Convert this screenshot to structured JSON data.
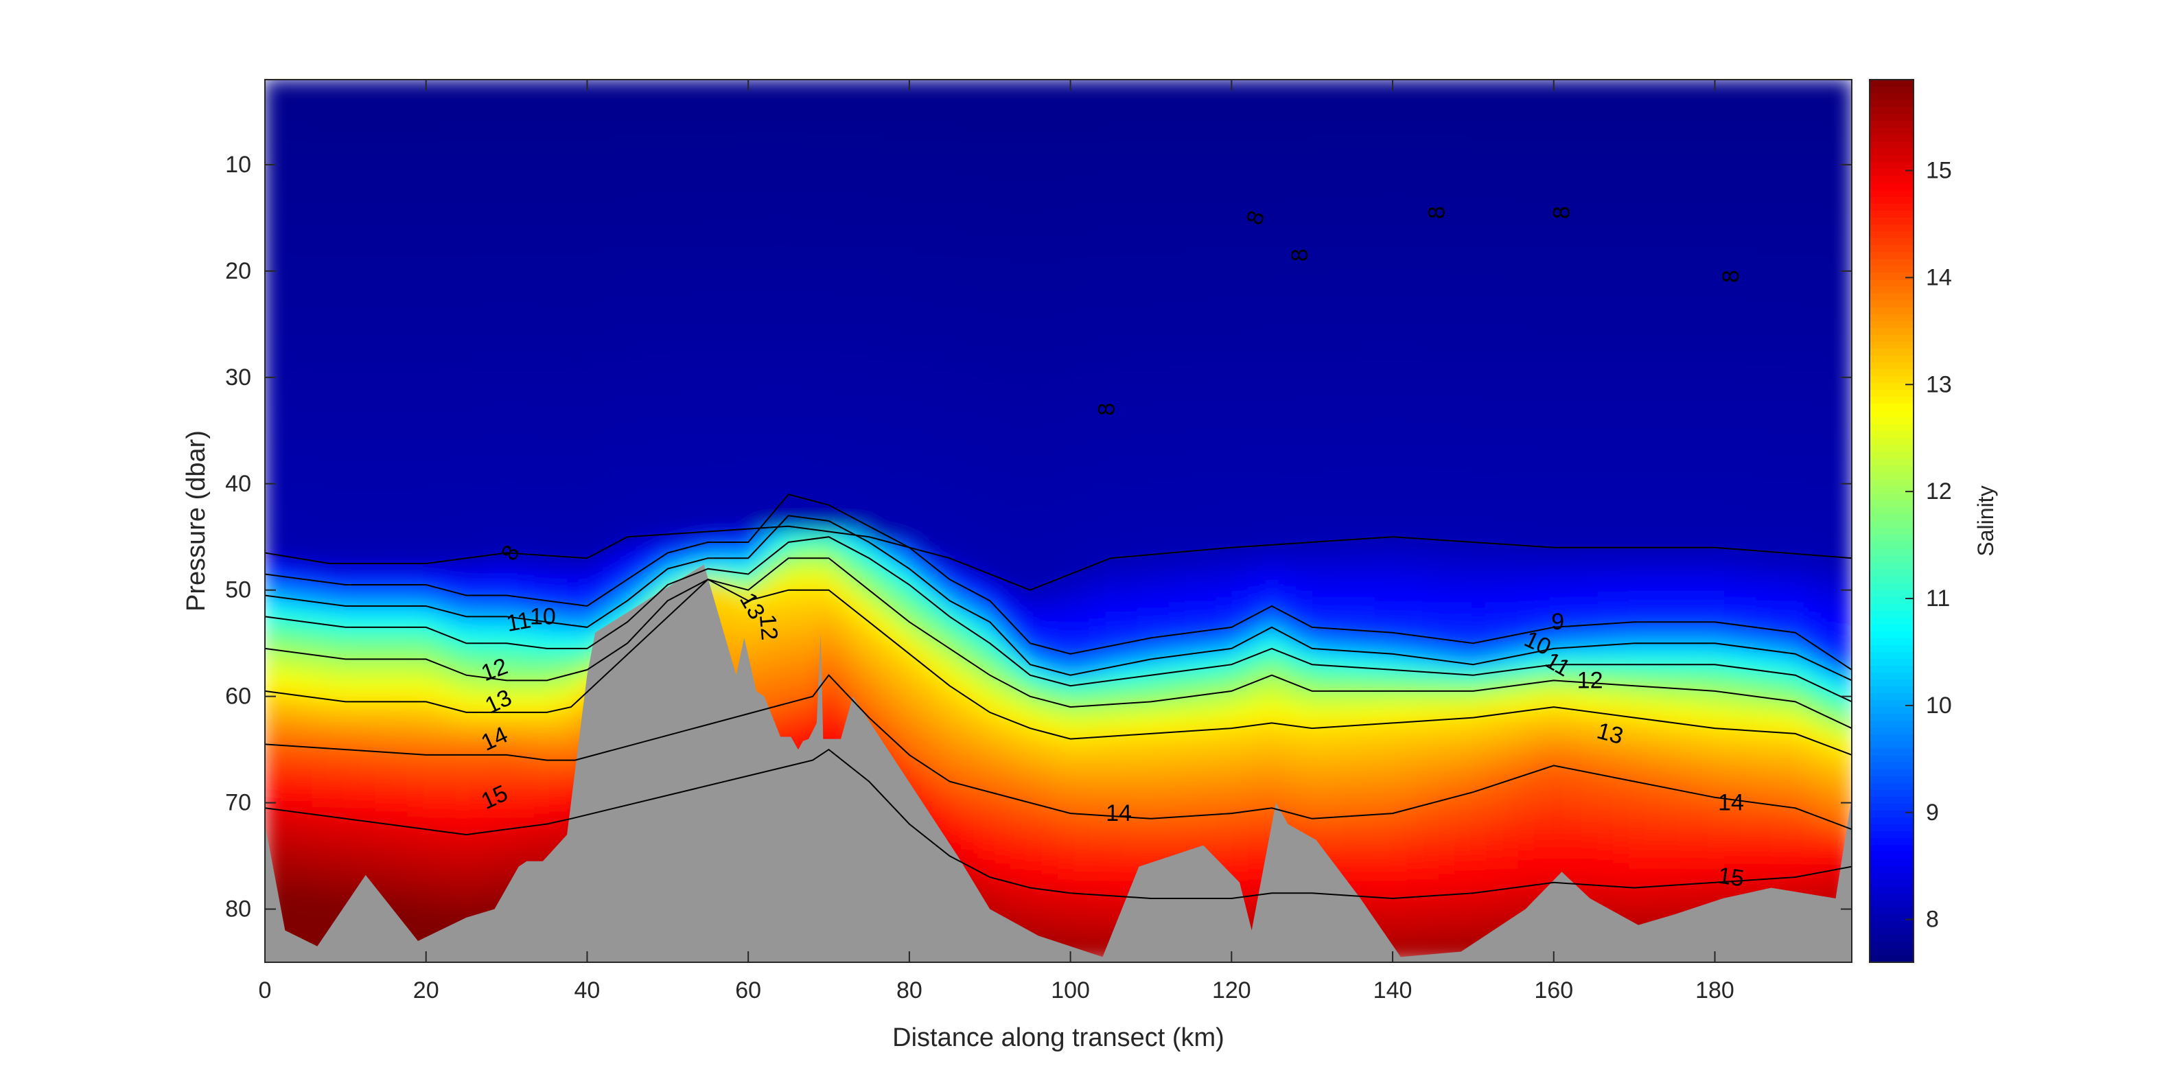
{
  "chart_data": {
    "type": "heatmap",
    "title": "",
    "xlabel": "Distance along transect (km)",
    "ylabel": "Pressure (dbar)",
    "xlim": [
      0,
      197
    ],
    "ylim": [
      2,
      85
    ],
    "y_reversed": true,
    "x_ticks": [
      0,
      20,
      40,
      60,
      80,
      100,
      120,
      140,
      160,
      180
    ],
    "y_ticks": [
      10,
      20,
      30,
      40,
      50,
      60,
      70,
      80
    ],
    "colorbar": {
      "label": "Salinity",
      "range": [
        7.6,
        15.85
      ],
      "ticks": [
        8,
        9,
        10,
        11,
        12,
        13,
        14,
        15
      ],
      "colormap": "jet"
    },
    "colors": {
      "bathymetry": "#969696",
      "contour": "#000000",
      "axis": "#262626"
    },
    "contour_levels": [
      8,
      9,
      10,
      11,
      12,
      13,
      14,
      15
    ],
    "contour_labels": [
      {
        "text": "8",
        "x": 30.5,
        "y": 46.5,
        "angle": -60
      },
      {
        "text": "8",
        "x": 104.5,
        "y": 33,
        "angle": -90
      },
      {
        "text": "8",
        "x": 123,
        "y": 15,
        "angle": -70
      },
      {
        "text": "8",
        "x": 128.5,
        "y": 18.5,
        "angle": -90
      },
      {
        "text": "8",
        "x": 145.5,
        "y": 14.5,
        "angle": -90
      },
      {
        "text": "8",
        "x": 161,
        "y": 14.5,
        "angle": -90
      },
      {
        "text": "8",
        "x": 182,
        "y": 20.5,
        "angle": -90
      },
      {
        "text": "10",
        "x": 34.5,
        "y": 52.5,
        "angle": 0
      },
      {
        "text": "11",
        "x": 31.5,
        "y": 53,
        "angle": -10
      },
      {
        "text": "12",
        "x": 28.5,
        "y": 57.5,
        "angle": -20
      },
      {
        "text": "13",
        "x": 29,
        "y": 60.5,
        "angle": -25
      },
      {
        "text": "14",
        "x": 28.5,
        "y": 64,
        "angle": -25
      },
      {
        "text": "15",
        "x": 28.5,
        "y": 69.5,
        "angle": -25
      },
      {
        "text": "13",
        "x": 60.5,
        "y": 51.5,
        "angle": 60
      },
      {
        "text": "12",
        "x": 62.5,
        "y": 53.5,
        "angle": 85
      },
      {
        "text": "14",
        "x": 106,
        "y": 71,
        "angle": 0
      },
      {
        "text": "9",
        "x": 160.5,
        "y": 53,
        "angle": 0
      },
      {
        "text": "10",
        "x": 158,
        "y": 55,
        "angle": 25
      },
      {
        "text": "11",
        "x": 160.5,
        "y": 57,
        "angle": 30
      },
      {
        "text": "12",
        "x": 164.5,
        "y": 58.5,
        "angle": 0
      },
      {
        "text": "13",
        "x": 167,
        "y": 63.5,
        "angle": 15
      },
      {
        "text": "14",
        "x": 182,
        "y": 70,
        "angle": 0
      },
      {
        "text": "15",
        "x": 182,
        "y": 77,
        "angle": 8
      }
    ],
    "bathymetry_profile": [
      [
        0,
        72
      ],
      [
        2.5,
        82
      ],
      [
        6.5,
        83.5
      ],
      [
        12.5,
        76.8
      ],
      [
        19,
        83
      ],
      [
        25,
        80.8
      ],
      [
        28.5,
        80
      ],
      [
        31.5,
        76
      ],
      [
        32.5,
        75.5
      ],
      [
        34.5,
        75.5
      ],
      [
        37.5,
        73
      ],
      [
        40,
        58
      ],
      [
        41,
        54
      ],
      [
        54.5,
        47.6
      ],
      [
        58.5,
        58
      ],
      [
        59.5,
        54.5
      ],
      [
        61,
        59.5
      ],
      [
        62,
        60
      ],
      [
        64,
        63.8
      ],
      [
        65.3,
        63.8
      ],
      [
        66.2,
        65
      ],
      [
        66.8,
        64.2
      ],
      [
        67.5,
        64
      ],
      [
        68.5,
        62.5
      ],
      [
        69,
        54
      ],
      [
        69.3,
        64
      ],
      [
        71.5,
        64
      ],
      [
        73,
        60
      ],
      [
        86,
        75
      ],
      [
        90,
        80
      ],
      [
        96,
        82.5
      ],
      [
        104,
        84.5
      ],
      [
        108.5,
        76
      ],
      [
        116.5,
        74
      ],
      [
        121,
        77.5
      ],
      [
        122.5,
        82
      ],
      [
        125.5,
        70
      ],
      [
        127,
        72
      ],
      [
        130.5,
        73.5
      ],
      [
        136,
        79
      ],
      [
        141,
        84.5
      ],
      [
        148.5,
        84
      ],
      [
        156.5,
        80
      ],
      [
        161,
        76.5
      ],
      [
        164.5,
        79
      ],
      [
        170.5,
        81.5
      ],
      [
        175,
        80.5
      ],
      [
        181,
        79
      ],
      [
        187,
        78
      ],
      [
        195,
        79
      ],
      [
        197,
        69.5
      ]
    ],
    "isohalines": [
      {
        "level": 8,
        "x": [
          0,
          8,
          20,
          30,
          40,
          45,
          55,
          65,
          75,
          85,
          95,
          105,
          120,
          140,
          160,
          180,
          197
        ],
        "y": [
          46.5,
          47.5,
          47.5,
          46.5,
          47,
          45,
          44.5,
          44,
          45,
          47,
          50,
          47,
          46,
          45,
          46,
          46,
          47
        ]
      },
      {
        "level": 9,
        "x": [
          0,
          10,
          20,
          25,
          30,
          35,
          40,
          45,
          50,
          55,
          60,
          65,
          70,
          75,
          80,
          85,
          90,
          95,
          100,
          110,
          120,
          125,
          130,
          140,
          150,
          160,
          170,
          180,
          190,
          197
        ],
        "y": [
          48.5,
          49.5,
          49.5,
          50.5,
          50.5,
          51,
          51.5,
          49,
          46.5,
          45.5,
          45.5,
          41,
          42,
          44,
          46,
          49,
          51,
          55,
          56,
          54.5,
          53.5,
          51.5,
          53.5,
          54,
          55,
          53.5,
          53,
          53,
          54,
          57.5
        ]
      },
      {
        "level": 10,
        "x": [
          0,
          10,
          20,
          25,
          30,
          35,
          40,
          45,
          50,
          55,
          60,
          65,
          70,
          75,
          80,
          85,
          90,
          95,
          100,
          110,
          120,
          125,
          130,
          140,
          150,
          160,
          170,
          180,
          190,
          197
        ],
        "y": [
          50.5,
          51.5,
          51.5,
          52.5,
          52.5,
          53,
          53.5,
          51,
          48,
          47,
          47,
          43,
          43.5,
          45.5,
          48,
          51,
          53,
          57,
          58,
          56.5,
          55.5,
          53.5,
          55.5,
          56,
          57,
          55.5,
          55,
          55,
          56,
          58.5
        ]
      },
      {
        "level": 11,
        "x": [
          0,
          10,
          20,
          25,
          30,
          35,
          40,
          45,
          50,
          55,
          60,
          65,
          70,
          75,
          80,
          85,
          90,
          95,
          100,
          110,
          120,
          125,
          130,
          140,
          150,
          160,
          170,
          180,
          190,
          197
        ],
        "y": [
          52.5,
          53.5,
          53.5,
          55,
          55,
          55.5,
          55.5,
          53,
          49.5,
          48,
          48.5,
          45.5,
          45,
          47,
          49.5,
          52.5,
          55,
          58,
          59,
          58,
          57,
          55.5,
          57,
          57.5,
          58,
          57,
          57,
          57,
          58,
          60.5
        ]
      },
      {
        "level": 12,
        "x": [
          0,
          10,
          20,
          25,
          30,
          35,
          40,
          45,
          50,
          55,
          60,
          65,
          70,
          75,
          80,
          85,
          90,
          95,
          100,
          110,
          120,
          125,
          130,
          140,
          150,
          160,
          170,
          180,
          190,
          197
        ],
        "y": [
          55.5,
          56.5,
          56.5,
          58,
          58.5,
          58.5,
          57.5,
          55,
          51,
          49,
          50,
          47,
          47,
          50,
          53,
          55.5,
          58,
          60,
          61,
          60.5,
          59.5,
          58,
          59.5,
          59.5,
          59.5,
          58.5,
          59,
          59.5,
          60.5,
          63
        ]
      },
      {
        "level": 13,
        "x": [
          0,
          10,
          20,
          25,
          30,
          35,
          38,
          55,
          60,
          65,
          70,
          75,
          80,
          85,
          90,
          95,
          100,
          110,
          120,
          125,
          130,
          140,
          150,
          160,
          170,
          180,
          190,
          197
        ],
        "y": [
          59.5,
          60.5,
          60.5,
          61.5,
          61.5,
          61.5,
          61,
          49,
          51,
          50,
          50,
          53,
          56,
          59,
          61.5,
          63,
          64,
          63.5,
          63,
          62.5,
          63,
          62.5,
          62,
          61,
          62,
          63,
          63.5,
          65.5
        ]
      },
      {
        "level": 14,
        "x": [
          0,
          10,
          20,
          25,
          30,
          35,
          38.5,
          68,
          70,
          75,
          80,
          85,
          90,
          95,
          100,
          110,
          120,
          125,
          130,
          140,
          150,
          160,
          170,
          180,
          190,
          197
        ],
        "y": [
          64.5,
          65,
          65.5,
          65.5,
          65.5,
          66,
          66,
          60,
          58,
          62,
          65.5,
          68,
          69,
          70,
          71,
          71.5,
          71,
          70.5,
          71.5,
          71,
          69,
          66.5,
          68,
          69.5,
          70.5,
          72.5
        ]
      },
      {
        "level": 15,
        "x": [
          0,
          10,
          20,
          25,
          30,
          35,
          38,
          68,
          70,
          75,
          80,
          85,
          90,
          95,
          100,
          110,
          120,
          125,
          130,
          140,
          150,
          160,
          170,
          180,
          190,
          197
        ],
        "y": [
          70.5,
          71.5,
          72.5,
          73,
          72.5,
          72,
          71.5,
          66,
          65,
          68,
          72,
          75,
          77,
          78,
          78.5,
          79,
          79,
          78.5,
          78.5,
          79,
          78.5,
          77.5,
          78,
          77.5,
          77,
          76
        ]
      }
    ]
  }
}
